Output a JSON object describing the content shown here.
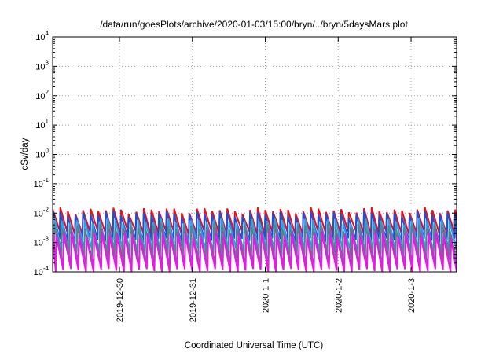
{
  "chart_data": {
    "type": "line",
    "title": "/data/run/goesPlots/archive/2020-01-03/15:00/bryn/../bryn/5daysMars.plot",
    "xlabel": "Coordinated Universal Time (UTC)",
    "ylabel": "cSv/day",
    "yscale": "log",
    "ylim": [
      0.0001,
      10000
    ],
    "y_ticks": [
      {
        "base": "10",
        "exp": "-4",
        "value": 0.0001
      },
      {
        "base": "10",
        "exp": "-3",
        "value": 0.001
      },
      {
        "base": "10",
        "exp": "-2",
        "value": 0.01
      },
      {
        "base": "10",
        "exp": "-1",
        "value": 0.1
      },
      {
        "base": "10",
        "exp": "0",
        "value": 1
      },
      {
        "base": "10",
        "exp": "1",
        "value": 10
      },
      {
        "base": "10",
        "exp": "2",
        "value": 100
      },
      {
        "base": "10",
        "exp": "3",
        "value": 1000
      },
      {
        "base": "10",
        "exp": "4",
        "value": 10000
      }
    ],
    "xlim": [
      "2019-12-29T02:00",
      "2020-01-03T15:00"
    ],
    "x_ticks": [
      {
        "label": "2019-12-30",
        "value": "2019-12-30T00:00"
      },
      {
        "label": "2019-12-31",
        "value": "2019-12-31T00:00"
      },
      {
        "label": "2020-1-1",
        "value": "2020-01-01T00:00"
      },
      {
        "label": "2020-1-2",
        "value": "2020-01-02T00:00"
      },
      {
        "label": "2020-1-3",
        "value": "2020-01-03T00:00"
      }
    ],
    "grid": true,
    "pattern_period_hours": 2.5,
    "series": [
      {
        "color": "#e8101a",
        "peak": 0.0125,
        "trough": 0.0022,
        "phase_hours": 0.0
      },
      {
        "color": "#1f4fd8",
        "peak": 0.0095,
        "trough": 0.0012,
        "phase_hours": 0.0
      },
      {
        "color": "#2aa0e6",
        "peak": 0.0055,
        "trough": 0.00055,
        "phase_hours": 0.6
      },
      {
        "color": "#4a8a8a",
        "peak": 0.0035,
        "trough": 0.00028,
        "phase_hours": 0.6
      },
      {
        "color": "#8a5aa8",
        "peak": 0.0025,
        "trough": 0.00018,
        "phase_hours": 1.2
      },
      {
        "color": "#e818e6",
        "peak": 0.0018,
        "trough": 0.00011,
        "phase_hours": 1.2
      }
    ]
  }
}
